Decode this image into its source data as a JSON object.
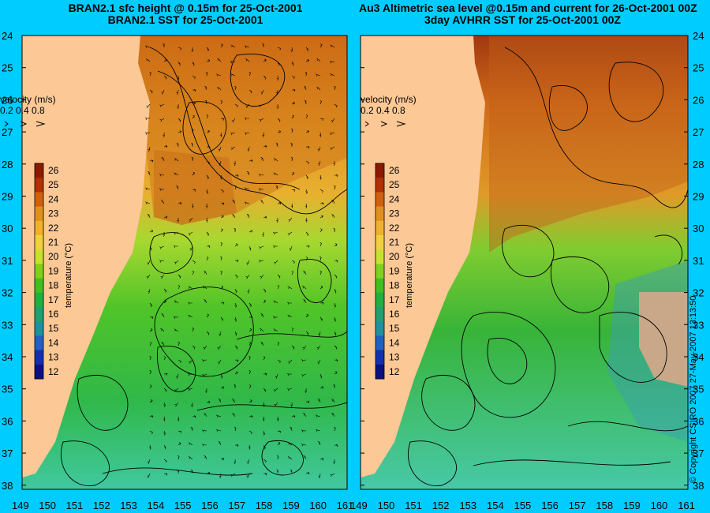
{
  "left_panel": {
    "title_line1": "BRAN2.1 sfc height @ 0.15m for 25-Oct-2001",
    "title_line2": "BRAN2.1 SST for 25-Oct-2001"
  },
  "right_panel": {
    "title_line1": "Au3 Altimetric sea level  @0.15m and current for 26-Oct-2001 00Z",
    "title_line2": "3day AVHRR SST for 25-Oct-2001 00Z"
  },
  "velocity_legend": {
    "label": "velocity (m/s)",
    "values": [
      "0.2",
      "0.4",
      "0.8"
    ]
  },
  "colorbar": {
    "label": "temperature (°C)",
    "ticks": [
      "26",
      "25",
      "24",
      "23",
      "22",
      "21",
      "20",
      "19",
      "18",
      "17",
      "16",
      "15",
      "14",
      "13",
      "12"
    ],
    "colors": [
      "#8b1a00",
      "#b03000",
      "#d06010",
      "#e09020",
      "#f0b030",
      "#f0d040",
      "#c8e030",
      "#80d020",
      "#40c020",
      "#20b040",
      "#20a070",
      "#2090a0",
      "#2060c0",
      "#1030b0",
      "#0a1080"
    ]
  },
  "lat_ticks": [
    "24",
    "25",
    "26",
    "27",
    "28",
    "29",
    "30",
    "31",
    "32",
    "33",
    "34",
    "35",
    "36",
    "37",
    "38"
  ],
  "lon_ticks": [
    "149",
    "150",
    "151",
    "152",
    "153",
    "154",
    "155",
    "156",
    "157",
    "158",
    "159",
    "160",
    "161"
  ],
  "copyright": "© Copyright CSIRO 2007   27-May-2007 13:13:50",
  "colors": {
    "background": "#00ccff",
    "land": "#fbc896",
    "warm_water": "#e09020",
    "cool_water": "#40c020"
  }
}
